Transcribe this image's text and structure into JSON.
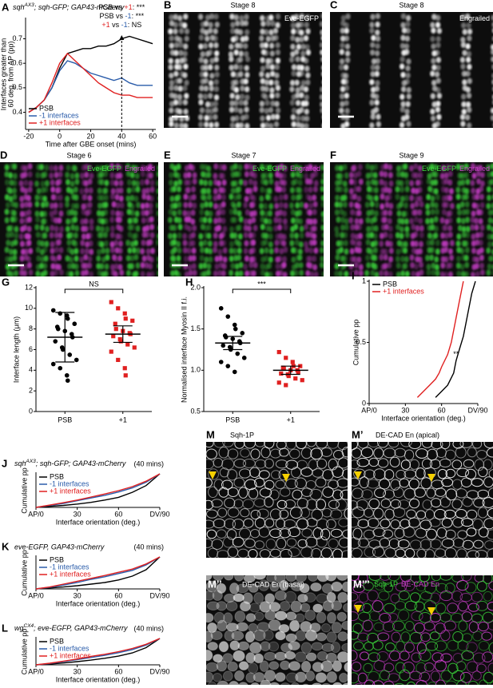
{
  "figure": {
    "images": [
      {
        "label": "B",
        "title": "Stage 8",
        "channels": [
          {
            "name": "Eve-EGFP",
            "color": "#ffffff"
          }
        ]
      },
      {
        "label": "C",
        "title": "Stage 8",
        "channels": [
          {
            "name": "Engrailed",
            "color": "#ffffff"
          }
        ]
      },
      {
        "label": "D",
        "title": "Stage 6",
        "channels": [
          {
            "name": "Eve-EGFP",
            "color": "#3ddc3d"
          },
          {
            "name": "Engrailed",
            "color": "#d040d0"
          }
        ]
      },
      {
        "label": "E",
        "title": "Stage 7",
        "channels": [
          {
            "name": "Eve-EGFP",
            "color": "#3ddc3d"
          },
          {
            "name": "Engrailed",
            "color": "#d040d0"
          }
        ]
      },
      {
        "label": "F",
        "title": "Stage 9",
        "channels": [
          {
            "name": "Eve-EGFP",
            "color": "#3ddc3d"
          },
          {
            "name": "Engrailed",
            "color": "#d040d0"
          }
        ]
      },
      {
        "label": "M",
        "title": "Sqh-1P"
      },
      {
        "label": "M’",
        "title": "DE-CAD En (apical)"
      },
      {
        "label": "M’’",
        "title": "DE-CAD En (basal)"
      },
      {
        "label": "M’’’",
        "channels": [
          {
            "name": "Sqh-1P",
            "color": "#3ddc3d"
          },
          {
            "name": "DE-CAD En",
            "color": "#d040d0"
          }
        ]
      }
    ]
  },
  "chart_data": [
    {
      "type": "line",
      "label": "A",
      "title": {
        "gene": "sqh",
        "allele": "AX3",
        "rest": "; sqh-GFP; GAP43-mCherry"
      },
      "xlabel": "Time after GBE onset (mins)",
      "ylabel": [
        "Interfaces greater than",
        "60 deg. from AP (pp)"
      ],
      "x": [
        -20,
        -15,
        -10,
        -5,
        0,
        5,
        10,
        15,
        20,
        25,
        30,
        35,
        40,
        45,
        50,
        55,
        60
      ],
      "series": [
        {
          "name": "PSB",
          "color": "#000000",
          "values": [
            0.4,
            0.42,
            0.45,
            0.5,
            0.58,
            0.64,
            0.65,
            0.66,
            0.66,
            0.67,
            0.67,
            0.68,
            0.7,
            0.71,
            0.7,
            0.69,
            0.68
          ]
        },
        {
          "name": "-1 interfaces",
          "color": "#2a5caa",
          "values": [
            0.4,
            0.42,
            0.45,
            0.5,
            0.57,
            0.61,
            0.6,
            0.58,
            0.56,
            0.55,
            0.54,
            0.53,
            0.54,
            0.52,
            0.51,
            0.51,
            0.51
          ]
        },
        {
          "name": "+1 interfaces",
          "color": "#e02020",
          "values": [
            0.4,
            0.42,
            0.45,
            0.52,
            0.6,
            0.64,
            0.61,
            0.58,
            0.55,
            0.52,
            0.5,
            0.48,
            0.47,
            0.47,
            0.46,
            0.46,
            0.46
          ]
        }
      ],
      "xlim": [
        -22,
        62
      ],
      "xticks": [
        -20,
        0,
        20,
        40,
        60
      ],
      "ylim": [
        0.33,
        0.78
      ],
      "yticks": [
        0.4,
        0.5,
        0.6,
        0.7
      ],
      "vline": 40,
      "annotations": [
        {
          "parts": [
            "PSB vs ",
            "+1",
            ": ***"
          ],
          "colors": [
            "#000000",
            "#e02020",
            "#000000"
          ]
        },
        {
          "parts": [
            "PSB vs ",
            "-1",
            ": ***"
          ],
          "colors": [
            "#000000",
            "#2a5caa",
            "#000000"
          ]
        },
        {
          "parts": [
            "+1",
            " vs ",
            "-1",
            ": NS"
          ],
          "colors": [
            "#e02020",
            "#000000",
            "#2a5caa",
            "#000000"
          ]
        }
      ],
      "legend": "lower left"
    },
    {
      "type": "dotplot",
      "label": "G",
      "ylabel": "Interface length (μm)",
      "categories": [
        "PSB",
        "+1"
      ],
      "points": [
        [
          9.8,
          9.5,
          9.3,
          9.0,
          8.5,
          8.2,
          8.0,
          7.8,
          7.5,
          7.2,
          6.8,
          6.2,
          6.0,
          5.5,
          5.0,
          4.6,
          4.2,
          3.5,
          3.0
        ],
        [
          10.6,
          10.0,
          9.5,
          9.0,
          8.8,
          8.5,
          8.0,
          7.8,
          7.6,
          7.5,
          7.3,
          7.0,
          6.8,
          6.5,
          6.2,
          5.8,
          5.0,
          4.2,
          3.5
        ]
      ],
      "mean": [
        7.2,
        7.5
      ],
      "error": [
        2.4,
        0.8
      ],
      "colors": [
        "#000000",
        "#e02020"
      ],
      "markers": [
        "circle",
        "square"
      ],
      "ylim": [
        0,
        12
      ],
      "yticks": [
        0,
        2,
        4,
        6,
        8,
        10,
        12
      ],
      "significance": "NS"
    },
    {
      "type": "dotplot",
      "label": "H",
      "ylabel": "Normalised interface Myosin II f.i.",
      "categories": [
        "PSB",
        "+1"
      ],
      "points": [
        [
          1.75,
          1.65,
          1.55,
          1.5,
          1.45,
          1.42,
          1.4,
          1.38,
          1.35,
          1.33,
          1.3,
          1.28,
          1.25,
          1.2,
          1.15,
          1.1,
          1.05,
          0.98
        ],
        [
          1.22,
          1.15,
          1.1,
          1.05,
          1.05,
          1.03,
          1.02,
          1.0,
          1.0,
          0.98,
          0.96,
          0.95,
          0.93,
          0.9,
          0.88,
          0.85,
          0.82
        ]
      ],
      "mean": [
        1.33,
        1.0
      ],
      "error": [
        0.08,
        0.05
      ],
      "colors": [
        "#000000",
        "#e02020"
      ],
      "markers": [
        "circle",
        "square"
      ],
      "ylim": [
        0.5,
        2.0
      ],
      "yticks": [
        0.5,
        {
          "value": 1,
          "label": "1.0"
        },
        1.5,
        {
          "value": 2,
          "label": "2.0"
        }
      ],
      "significance": "***"
    },
    {
      "type": "line",
      "label": "I",
      "xlabel": "Interface orientation (deg.)",
      "ylabel": "Cumulative pp",
      "series": [
        {
          "name": "PSB",
          "color": "#000000",
          "x": [
            55,
            60,
            65,
            70,
            72,
            75,
            78,
            80,
            82,
            85,
            88
          ],
          "values": [
            0.05,
            0.1,
            0.15,
            0.25,
            0.35,
            0.45,
            0.55,
            0.65,
            0.75,
            0.9,
            1.0
          ]
        },
        {
          "name": "+1 interfaces",
          "color": "#e02020",
          "x": [
            40,
            45,
            50,
            55,
            58,
            60,
            65,
            68,
            70,
            72,
            75,
            78
          ],
          "values": [
            0.05,
            0.1,
            0.15,
            0.2,
            0.25,
            0.3,
            0.4,
            0.5,
            0.6,
            0.7,
            0.85,
            1.0
          ]
        }
      ],
      "xlim": [
        0,
        90
      ],
      "xticks": [
        {
          "value": 0,
          "label": "AP/0"
        },
        30,
        60,
        {
          "value": 90,
          "label": "DV/90"
        }
      ],
      "ylim": [
        0,
        1
      ],
      "yticks": [
        0,
        0.5,
        1
      ],
      "annotation": "**",
      "legend": "upper left"
    },
    {
      "type": "line",
      "label": "J",
      "title": {
        "gene": "sqh",
        "allele": "AX3",
        "rest": "; sqh-GFP; GAP43-mCherry"
      },
      "subtitle": "(40 mins)",
      "xlabel": "Interface orientation (deg.)",
      "ylabel": "Cumulative pp",
      "x": [
        0,
        10,
        20,
        30,
        40,
        50,
        60,
        70,
        80,
        90
      ],
      "series": [
        {
          "name": "PSB",
          "color": "#000000",
          "values": [
            0,
            0.03,
            0.06,
            0.1,
            0.15,
            0.22,
            0.3,
            0.45,
            0.65,
            1.0
          ]
        },
        {
          "name": "-1 interfaces",
          "color": "#2a5caa",
          "values": [
            0,
            0.06,
            0.12,
            0.2,
            0.28,
            0.36,
            0.46,
            0.58,
            0.75,
            1.0
          ]
        },
        {
          "name": "+1 interfaces",
          "color": "#e02020",
          "values": [
            0,
            0.07,
            0.14,
            0.22,
            0.31,
            0.4,
            0.5,
            0.62,
            0.78,
            1.0
          ]
        }
      ],
      "xlim": [
        0,
        90
      ],
      "xticks": [
        {
          "value": 0,
          "label": "AP/0"
        },
        30,
        60,
        {
          "value": 90,
          "label": "DV/90"
        }
      ],
      "ylim": [
        0,
        1
      ],
      "legend": "upper left"
    },
    {
      "type": "line",
      "label": "K",
      "title": "eve-EGFP, GAP43-mCherry",
      "subtitle": "(40 mins)",
      "xlabel": "Interface orientation (deg.)",
      "ylabel": "Cumulative pp",
      "x": [
        0,
        10,
        20,
        30,
        40,
        50,
        60,
        70,
        80,
        90
      ],
      "series": [
        {
          "name": "PSB",
          "color": "#000000",
          "values": [
            0,
            0.03,
            0.06,
            0.1,
            0.15,
            0.2,
            0.28,
            0.4,
            0.6,
            1.0
          ]
        },
        {
          "name": "-1 interfaces",
          "color": "#2a5caa",
          "values": [
            0,
            0.05,
            0.12,
            0.2,
            0.3,
            0.38,
            0.48,
            0.58,
            0.75,
            1.0
          ]
        },
        {
          "name": "+1 interfaces",
          "color": "#e02020",
          "values": [
            0,
            0.06,
            0.15,
            0.24,
            0.33,
            0.42,
            0.52,
            0.62,
            0.78,
            1.0
          ]
        }
      ],
      "xlim": [
        0,
        90
      ],
      "xticks": [
        {
          "value": 0,
          "label": "AP/0"
        },
        30,
        60,
        {
          "value": 90,
          "label": "DV/90"
        }
      ],
      "ylim": [
        0,
        1
      ],
      "legend": "upper left"
    },
    {
      "type": "line",
      "label": "L",
      "title": {
        "gene": "wg",
        "allele": "CX4",
        "rest": "; eve-EGFP, GAP43-mCherry"
      },
      "subtitle": "(40 mins)",
      "xlabel": "Interface orientation (deg.)",
      "ylabel": "Cumulative pp",
      "x": [
        0,
        10,
        20,
        30,
        40,
        50,
        60,
        70,
        80,
        90
      ],
      "series": [
        {
          "name": "PSB",
          "color": "#000000",
          "values": [
            0,
            0.03,
            0.07,
            0.12,
            0.18,
            0.25,
            0.33,
            0.45,
            0.65,
            1.0
          ]
        },
        {
          "name": "-1 interfaces",
          "color": "#2a5caa",
          "values": [
            0,
            0.05,
            0.12,
            0.2,
            0.28,
            0.36,
            0.46,
            0.58,
            0.75,
            1.0
          ]
        },
        {
          "name": "+1 interfaces",
          "color": "#e02020",
          "values": [
            0,
            0.06,
            0.14,
            0.22,
            0.32,
            0.4,
            0.5,
            0.62,
            0.78,
            1.0
          ]
        }
      ],
      "xlim": [
        0,
        90
      ],
      "xticks": [
        {
          "value": 0,
          "label": "AP/0"
        },
        30,
        60,
        {
          "value": 90,
          "label": "DV/90"
        }
      ],
      "ylim": [
        0,
        1
      ],
      "legend": "upper left"
    }
  ]
}
